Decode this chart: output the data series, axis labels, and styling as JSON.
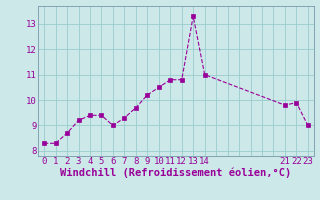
{
  "x": [
    0,
    1,
    2,
    3,
    4,
    5,
    6,
    7,
    8,
    9,
    10,
    11,
    12,
    13,
    14,
    21,
    22,
    23
  ],
  "y": [
    8.3,
    8.3,
    8.7,
    9.2,
    9.4,
    9.4,
    9.0,
    9.3,
    9.7,
    10.2,
    10.5,
    10.8,
    10.8,
    13.3,
    11.0,
    9.8,
    9.9,
    9.0
  ],
  "line_color": "#990099",
  "marker_color": "#990099",
  "bg_color": "#cce8e8",
  "grid_color": "#99cccc",
  "xlabel": "Windchill (Refroidissement éolien,°C)",
  "xlabel_color": "#990099",
  "tick_color": "#990099",
  "spine_color": "#7799aa",
  "xlim": [
    -0.5,
    23.5
  ],
  "ylim": [
    7.8,
    13.7
  ],
  "yticks": [
    8,
    9,
    10,
    11,
    12,
    13
  ],
  "xtick_labels": [
    "0",
    "1",
    "2",
    "3",
    "4",
    "5",
    "6",
    "7",
    "8",
    "9",
    "10",
    "11",
    "12",
    "13",
    "14",
    "",
    "",
    "",
    "",
    "",
    "",
    "21",
    "22",
    "23"
  ],
  "xtick_positions": [
    0,
    1,
    2,
    3,
    4,
    5,
    6,
    7,
    8,
    9,
    10,
    11,
    12,
    13,
    14,
    15,
    16,
    17,
    18,
    19,
    20,
    21,
    22,
    23
  ],
  "font_size": 6.5,
  "label_font_size": 7.5
}
